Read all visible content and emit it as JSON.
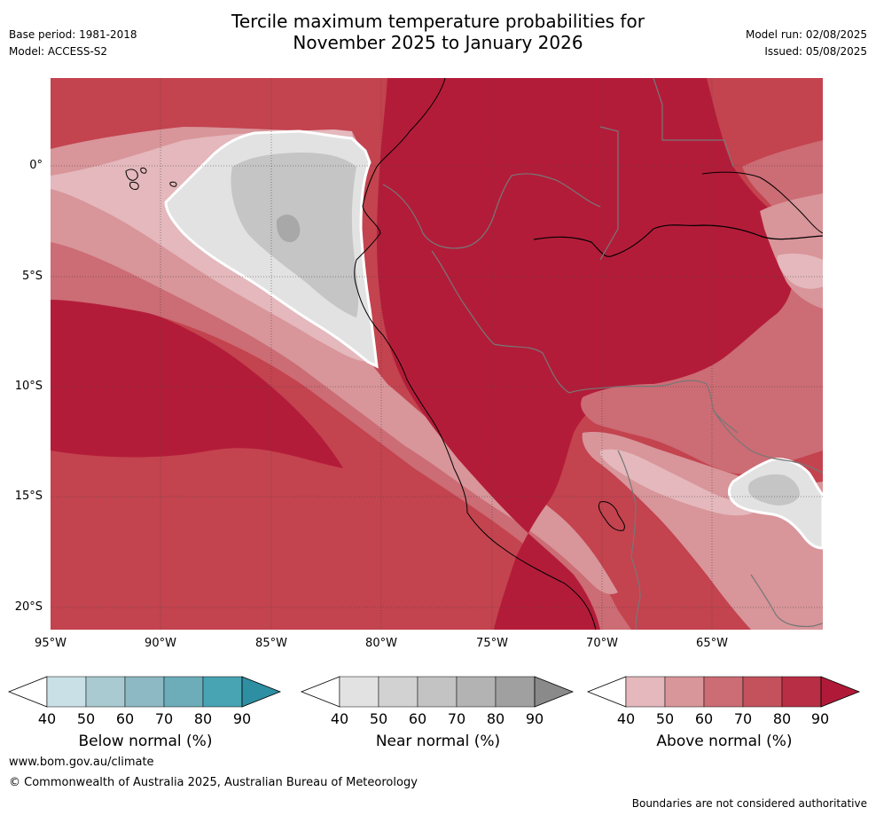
{
  "header": {
    "title_line1": "Tercile maximum temperature probabilities for",
    "title_line2": "November 2025 to January 2026",
    "base_period": "Base period: 1981-2018",
    "model": "Model: ACCESS-S2",
    "model_run": "Model run: 02/08/2025",
    "issued": "Issued: 05/08/2025"
  },
  "map": {
    "lat_labels": [
      "0°",
      "5°S",
      "10°S",
      "15°S",
      "20°S"
    ],
    "lon_labels": [
      "95°W",
      "90°W",
      "85°W",
      "80°W",
      "75°W",
      "70°W",
      "65°W"
    ],
    "lat_range": [
      -21,
      4
    ],
    "lon_range": [
      -95,
      -60
    ],
    "colors": {
      "above_90": "#b31c39",
      "above_80": "#c3434f",
      "above_70": "#cc6c74",
      "above_60": "#d8959a",
      "above_50": "#e4b8bc",
      "near_40": "#e2e2e2",
      "near_50": "#d5d5d5",
      "near_60": "#c5c5c5",
      "near_70": "#a8a8a8"
    }
  },
  "colorbars": [
    {
      "label": "Below normal (%)",
      "ticks": [
        "40",
        "50",
        "60",
        "70",
        "80",
        "90"
      ],
      "colors": [
        "#ffffff",
        "#c9e1e6",
        "#a9cad1",
        "#8cb9c4",
        "#6dadba",
        "#48a3b2",
        "#2e8fa3"
      ]
    },
    {
      "label": "Near normal (%)",
      "ticks": [
        "40",
        "50",
        "60",
        "70",
        "80",
        "90"
      ],
      "colors": [
        "#ffffff",
        "#e2e2e2",
        "#d2d2d2",
        "#c3c3c3",
        "#b3b3b3",
        "#a0a0a0",
        "#8a8a8a"
      ]
    },
    {
      "label": "Above normal (%)",
      "ticks": [
        "40",
        "50",
        "60",
        "70",
        "80",
        "90"
      ],
      "colors": [
        "#ffffff",
        "#e4b8bc",
        "#d8959a",
        "#cc6c74",
        "#c3525d",
        "#b82e44",
        "#b01a38"
      ]
    }
  ],
  "footer": {
    "website": "www.bom.gov.au/climate",
    "copyright": "© Commonwealth of Australia 2025, Australian Bureau of Meteorology",
    "disclaimer": "Boundaries are not considered authoritative"
  }
}
